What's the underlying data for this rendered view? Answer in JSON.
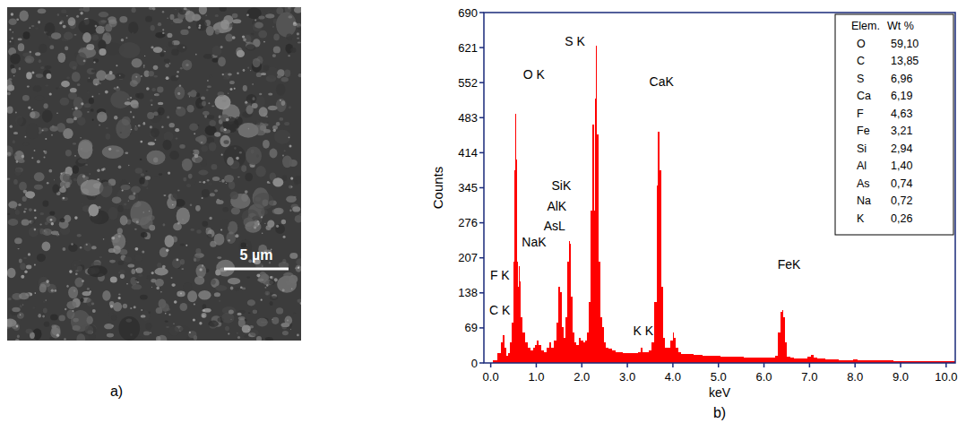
{
  "panel_labels": [
    "a)",
    "b)"
  ],
  "micrograph": {
    "scale_bar": {
      "label": "5 µm"
    }
  },
  "chart_data": {
    "type": "bar",
    "color": "#ff0000",
    "x_label": "keV",
    "y_label": "Counts",
    "xlim": [
      -0.15,
      10.2
    ],
    "xticks": [
      {
        "value": 0,
        "label": "0.0"
      },
      {
        "value": 1,
        "label": "1.0"
      },
      {
        "value": 2,
        "label": "2.0"
      },
      {
        "value": 3,
        "label": "3.0"
      },
      {
        "value": 4,
        "label": "4.0"
      },
      {
        "value": 5,
        "label": "5.0"
      },
      {
        "value": 6,
        "label": "6.0"
      },
      {
        "value": 7,
        "label": "7.0"
      },
      {
        "value": 8,
        "label": "8.0"
      },
      {
        "value": 9,
        "label": "9.0"
      },
      {
        "value": 10,
        "label": "10.0"
      }
    ],
    "ylim": [
      0,
      690
    ],
    "yticks": [
      0,
      69,
      138,
      207,
      276,
      345,
      414,
      483,
      552,
      621,
      690
    ],
    "grid": false,
    "x": [
      0,
      0.1,
      0.2,
      0.24,
      0.28,
      0.32,
      0.36,
      0.4,
      0.44,
      0.48,
      0.5,
      0.52,
      0.54,
      0.56,
      0.58,
      0.6,
      0.62,
      0.64,
      0.68,
      0.72,
      0.78,
      0.84,
      0.9,
      0.96,
      1.0,
      1.04,
      1.08,
      1.14,
      1.2,
      1.26,
      1.3,
      1.36,
      1.42,
      1.46,
      1.5,
      1.54,
      1.58,
      1.62,
      1.66,
      1.7,
      1.72,
      1.74,
      1.78,
      1.82,
      1.86,
      1.9,
      1.96,
      2.0,
      2.06,
      2.1,
      2.14,
      2.18,
      2.22,
      2.25,
      2.28,
      2.3,
      2.32,
      2.35,
      2.38,
      2.42,
      2.46,
      2.5,
      2.56,
      2.62,
      2.7,
      2.78,
      2.86,
      2.94,
      3.0,
      3.1,
      3.2,
      3.26,
      3.31,
      3.36,
      3.44,
      3.5,
      3.56,
      3.62,
      3.66,
      3.69,
      3.72,
      3.76,
      3.8,
      3.86,
      3.92,
      3.98,
      4.01,
      4.04,
      4.08,
      4.14,
      4.2,
      4.3,
      4.4,
      4.5,
      4.6,
      4.7,
      4.8,
      4.9,
      5.0,
      5.1,
      5.2,
      5.3,
      5.4,
      5.5,
      5.6,
      5.7,
      5.8,
      5.9,
      6.0,
      6.1,
      6.2,
      6.28,
      6.34,
      6.38,
      6.41,
      6.44,
      6.48,
      6.54,
      6.6,
      6.7,
      6.8,
      6.9,
      7.0,
      7.06,
      7.12,
      7.2,
      7.3,
      7.4,
      7.5,
      7.6,
      7.7,
      7.8,
      7.9,
      8.0,
      8.1,
      8.2,
      8.3,
      8.4,
      8.5,
      8.6,
      8.7,
      8.8,
      8.9,
      9.0,
      9.1,
      9.2,
      9.3,
      9.4,
      9.5,
      9.6,
      9.7,
      9.8,
      9.9,
      10.0,
      10.1,
      10.2
    ],
    "values": [
      0,
      5,
      20,
      40,
      55,
      30,
      15,
      20,
      40,
      80,
      200,
      380,
      490,
      400,
      200,
      150,
      190,
      160,
      90,
      60,
      40,
      30,
      25,
      30,
      35,
      45,
      35,
      25,
      22,
      30,
      40,
      30,
      45,
      80,
      150,
      140,
      70,
      50,
      90,
      200,
      240,
      235,
      130,
      60,
      40,
      35,
      50,
      45,
      40,
      45,
      60,
      120,
      300,
      470,
      300,
      520,
      625,
      450,
      200,
      90,
      70,
      40,
      30,
      28,
      25,
      22,
      22,
      20,
      20,
      20,
      20,
      22,
      30,
      22,
      22,
      25,
      40,
      120,
      350,
      455,
      380,
      150,
      50,
      30,
      30,
      45,
      60,
      50,
      30,
      22,
      18,
      18,
      17,
      16,
      16,
      15,
      15,
      14,
      14,
      13,
      13,
      12,
      12,
      12,
      11,
      11,
      11,
      10,
      10,
      10,
      10,
      15,
      60,
      100,
      105,
      90,
      40,
      12,
      10,
      9,
      9,
      8,
      12,
      16,
      10,
      8,
      8,
      7,
      7,
      7,
      6,
      6,
      6,
      7,
      6,
      6,
      5,
      5,
      5,
      5,
      5,
      5,
      4,
      4,
      4,
      4,
      4,
      4,
      4,
      3,
      3,
      3,
      3,
      3,
      3,
      3
    ],
    "annotations": [
      {
        "text": "O K",
        "x": 0.95,
        "y": 560
      },
      {
        "text": "S K",
        "x": 1.85,
        "y": 625
      },
      {
        "text": "CaK",
        "x": 3.75,
        "y": 545
      },
      {
        "text": "SiK",
        "x": 1.55,
        "y": 340
      },
      {
        "text": "AlK",
        "x": 1.45,
        "y": 300
      },
      {
        "text": "AsL",
        "x": 1.4,
        "y": 262
      },
      {
        "text": "NaK",
        "x": 0.95,
        "y": 230
      },
      {
        "text": "F K",
        "x": 0.2,
        "y": 165
      },
      {
        "text": "C K",
        "x": 0.2,
        "y": 95
      },
      {
        "text": "K K",
        "x": 3.35,
        "y": 55
      },
      {
        "text": "FeK",
        "x": 6.55,
        "y": 185
      }
    ],
    "composition": {
      "header": [
        "Elem.",
        "Wt %"
      ],
      "rows": [
        [
          "O",
          "59,10"
        ],
        [
          "C",
          "13,85"
        ],
        [
          "S",
          "6,96"
        ],
        [
          "Ca",
          "6,19"
        ],
        [
          "F",
          "4,63"
        ],
        [
          "Fe",
          "3,21"
        ],
        [
          "Si",
          "2,94"
        ],
        [
          "Al",
          "1,40"
        ],
        [
          "As",
          "0,74"
        ],
        [
          "Na",
          "0,72"
        ],
        [
          "K",
          "0,26"
        ]
      ]
    }
  }
}
